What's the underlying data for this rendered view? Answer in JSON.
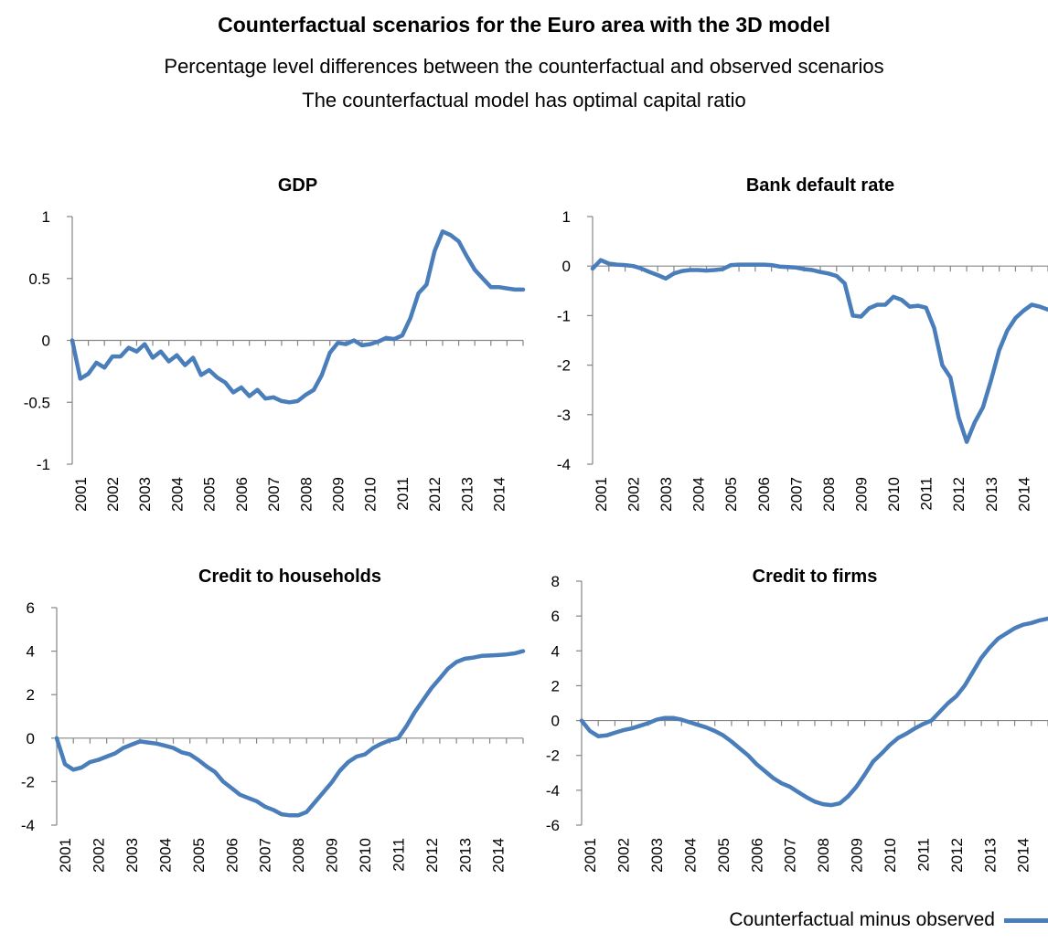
{
  "title": "Counterfactual scenarios for the Euro area with the 3D model",
  "subtitle_1": "Percentage level differences between the counterfactual and observed scenarios",
  "subtitle_2": "The counterfactual model has optimal capital ratio",
  "series_color": "#4a7ebb",
  "legend": {
    "label": "Counterfactual minus observed"
  },
  "chart_data": [
    {
      "type": "line",
      "title": "GDP",
      "categories": [
        "2001",
        "2002",
        "2003",
        "2004",
        "2005",
        "2006",
        "2007",
        "2008",
        "2009",
        "2010",
        "2011",
        "2012",
        "2013",
        "2014"
      ],
      "x_range": [
        2000.75,
        2014.75
      ],
      "ylim": [
        -1,
        1
      ],
      "yticks": [
        -1,
        -0.5,
        0,
        0.5,
        1
      ],
      "ytick_labels": [
        "-1",
        "-0.5",
        "0",
        "0.5",
        "1"
      ],
      "grid": false,
      "series": [
        {
          "x": [
            2000.75,
            2001.0,
            2001.25,
            2001.5,
            2001.75,
            2002.0,
            2002.25,
            2002.5,
            2002.75,
            2003.0,
            2003.25,
            2003.5,
            2003.75,
            2004.0,
            2004.25,
            2004.5,
            2004.75,
            2005.0,
            2005.25,
            2005.5,
            2005.75,
            2006.0,
            2006.25,
            2006.5,
            2006.75,
            2007.0,
            2007.25,
            2007.5,
            2007.75,
            2008.0,
            2008.25,
            2008.5,
            2008.75,
            2009.0,
            2009.25,
            2009.5,
            2009.75,
            2010.0,
            2010.25,
            2010.5,
            2010.75,
            2011.0,
            2011.25,
            2011.5,
            2011.75,
            2012.0,
            2012.25,
            2012.5,
            2012.75,
            2013.0,
            2013.25,
            2013.5,
            2013.75,
            2014.0,
            2014.25,
            2014.5,
            2014.75
          ],
          "values": [
            0.0,
            -0.31,
            -0.27,
            -0.18,
            -0.22,
            -0.13,
            -0.13,
            -0.06,
            -0.09,
            -0.03,
            -0.14,
            -0.09,
            -0.17,
            -0.12,
            -0.2,
            -0.14,
            -0.28,
            -0.24,
            -0.3,
            -0.34,
            -0.42,
            -0.38,
            -0.45,
            -0.4,
            -0.47,
            -0.46,
            -0.49,
            -0.5,
            -0.49,
            -0.44,
            -0.4,
            -0.28,
            -0.1,
            -0.02,
            -0.03,
            0.0,
            -0.04,
            -0.03,
            -0.01,
            0.02,
            0.01,
            0.04,
            0.18,
            0.38,
            0.45,
            0.72,
            0.88,
            0.85,
            0.8,
            0.68,
            0.57,
            0.5,
            0.43,
            0.43,
            0.42,
            0.41,
            0.41
          ]
        }
      ]
    },
    {
      "type": "line",
      "title": "Bank default rate",
      "categories": [
        "2001",
        "2002",
        "2003",
        "2004",
        "2005",
        "2006",
        "2007",
        "2008",
        "2009",
        "2010",
        "2011",
        "2012",
        "2013",
        "2014"
      ],
      "x_range": [
        2000.75,
        2014.75
      ],
      "ylim": [
        -4,
        1
      ],
      "yticks": [
        -4,
        -3,
        -2,
        -1,
        0,
        1
      ],
      "ytick_labels": [
        "-4",
        "-3",
        "-2",
        "-1",
        "0",
        "1"
      ],
      "grid": false,
      "series": [
        {
          "x": [
            2000.75,
            2001.0,
            2001.25,
            2001.5,
            2001.75,
            2002.0,
            2002.25,
            2002.5,
            2002.75,
            2003.0,
            2003.25,
            2003.5,
            2003.75,
            2004.0,
            2004.25,
            2004.5,
            2004.75,
            2005.0,
            2005.25,
            2005.5,
            2005.75,
            2006.0,
            2006.25,
            2006.5,
            2006.75,
            2007.0,
            2007.25,
            2007.5,
            2007.75,
            2008.0,
            2008.25,
            2008.5,
            2008.75,
            2009.0,
            2009.25,
            2009.5,
            2009.75,
            2010.0,
            2010.25,
            2010.5,
            2010.75,
            2011.0,
            2011.25,
            2011.5,
            2011.75,
            2012.0,
            2012.25,
            2012.5,
            2012.75,
            2013.0,
            2013.25,
            2013.5,
            2013.75,
            2014.0,
            2014.25,
            2014.5,
            2014.75
          ],
          "values": [
            -0.05,
            0.12,
            0.05,
            0.03,
            0.02,
            0.0,
            -0.05,
            -0.12,
            -0.18,
            -0.25,
            -0.15,
            -0.1,
            -0.08,
            -0.08,
            -0.09,
            -0.08,
            -0.06,
            0.02,
            0.03,
            0.03,
            0.03,
            0.03,
            0.02,
            -0.01,
            -0.02,
            -0.03,
            -0.06,
            -0.08,
            -0.12,
            -0.15,
            -0.2,
            -0.35,
            -1.0,
            -1.02,
            -0.85,
            -0.78,
            -0.78,
            -0.62,
            -0.68,
            -0.82,
            -0.8,
            -0.84,
            -1.25,
            -2.0,
            -2.25,
            -3.05,
            -3.55,
            -3.15,
            -2.85,
            -2.3,
            -1.7,
            -1.3,
            -1.05,
            -0.9,
            -0.78,
            -0.82,
            -0.88
          ]
        }
      ]
    },
    {
      "type": "line",
      "title": "Credit to households",
      "categories": [
        "2001",
        "2002",
        "2003",
        "2004",
        "2005",
        "2006",
        "2007",
        "2008",
        "2009",
        "2010",
        "2011",
        "2012",
        "2013",
        "2014"
      ],
      "x_range": [
        2000.75,
        2014.75
      ],
      "ylim": [
        -4,
        6
      ],
      "yticks": [
        -4,
        -2,
        0,
        2,
        4,
        6
      ],
      "ytick_labels": [
        "-4",
        "-2",
        "0",
        "2",
        "4",
        "6"
      ],
      "grid": false,
      "series": [
        {
          "x": [
            2000.75,
            2001.0,
            2001.25,
            2001.5,
            2001.75,
            2002.0,
            2002.25,
            2002.5,
            2002.75,
            2003.0,
            2003.25,
            2003.5,
            2003.75,
            2004.0,
            2004.25,
            2004.5,
            2004.75,
            2005.0,
            2005.25,
            2005.5,
            2005.75,
            2006.0,
            2006.25,
            2006.5,
            2006.75,
            2007.0,
            2007.25,
            2007.5,
            2007.75,
            2008.0,
            2008.25,
            2008.5,
            2008.75,
            2009.0,
            2009.25,
            2009.5,
            2009.75,
            2010.0,
            2010.25,
            2010.5,
            2010.75,
            2011.0,
            2011.25,
            2011.5,
            2011.75,
            2012.0,
            2012.25,
            2012.5,
            2012.75,
            2013.0,
            2013.25,
            2013.5,
            2013.75,
            2014.0,
            2014.25,
            2014.5,
            2014.75
          ],
          "values": [
            0.0,
            -1.2,
            -1.45,
            -1.35,
            -1.1,
            -1.0,
            -0.85,
            -0.7,
            -0.45,
            -0.3,
            -0.15,
            -0.2,
            -0.25,
            -0.35,
            -0.45,
            -0.65,
            -0.75,
            -1.0,
            -1.3,
            -1.55,
            -2.0,
            -2.3,
            -2.6,
            -2.75,
            -2.9,
            -3.15,
            -3.3,
            -3.5,
            -3.55,
            -3.55,
            -3.4,
            -2.95,
            -2.5,
            -2.05,
            -1.5,
            -1.1,
            -0.85,
            -0.75,
            -0.45,
            -0.25,
            -0.1,
            0.0,
            0.55,
            1.2,
            1.75,
            2.3,
            2.75,
            3.2,
            3.5,
            3.65,
            3.7,
            3.78,
            3.8,
            3.82,
            3.85,
            3.9,
            4.0
          ]
        }
      ]
    },
    {
      "type": "line",
      "title": "Credit to firms",
      "categories": [
        "2001",
        "2002",
        "2003",
        "2004",
        "2005",
        "2006",
        "2007",
        "2008",
        "2009",
        "2010",
        "2011",
        "2012",
        "2013",
        "2014"
      ],
      "x_range": [
        2000.75,
        2014.75
      ],
      "ylim": [
        -6,
        8
      ],
      "yticks": [
        -6,
        -4,
        -2,
        0,
        2,
        4,
        6,
        8
      ],
      "ytick_labels": [
        "-6",
        "-4",
        "-2",
        "0",
        "2",
        "4",
        "6",
        "8"
      ],
      "grid": false,
      "series": [
        {
          "x": [
            2000.75,
            2001.0,
            2001.25,
            2001.5,
            2001.75,
            2002.0,
            2002.25,
            2002.5,
            2002.75,
            2003.0,
            2003.25,
            2003.5,
            2003.75,
            2004.0,
            2004.25,
            2004.5,
            2004.75,
            2005.0,
            2005.25,
            2005.5,
            2005.75,
            2006.0,
            2006.25,
            2006.5,
            2006.75,
            2007.0,
            2007.25,
            2007.5,
            2007.75,
            2008.0,
            2008.25,
            2008.5,
            2008.75,
            2009.0,
            2009.25,
            2009.5,
            2009.75,
            2010.0,
            2010.25,
            2010.5,
            2010.75,
            2011.0,
            2011.25,
            2011.5,
            2011.75,
            2012.0,
            2012.25,
            2012.5,
            2012.75,
            2013.0,
            2013.25,
            2013.5,
            2013.75,
            2014.0,
            2014.25,
            2014.5,
            2014.75
          ],
          "values": [
            0.0,
            -0.6,
            -0.9,
            -0.85,
            -0.7,
            -0.55,
            -0.45,
            -0.3,
            -0.15,
            0.05,
            0.15,
            0.15,
            0.05,
            -0.1,
            -0.25,
            -0.4,
            -0.6,
            -0.85,
            -1.2,
            -1.6,
            -2.0,
            -2.5,
            -2.9,
            -3.3,
            -3.6,
            -3.8,
            -4.1,
            -4.4,
            -4.65,
            -4.8,
            -4.85,
            -4.75,
            -4.35,
            -3.8,
            -3.1,
            -2.35,
            -1.9,
            -1.4,
            -1.0,
            -0.75,
            -0.45,
            -0.2,
            0.0,
            0.5,
            1.0,
            1.4,
            2.0,
            2.8,
            3.6,
            4.2,
            4.7,
            5.0,
            5.3,
            5.5,
            5.6,
            5.75,
            5.85
          ]
        }
      ]
    }
  ]
}
